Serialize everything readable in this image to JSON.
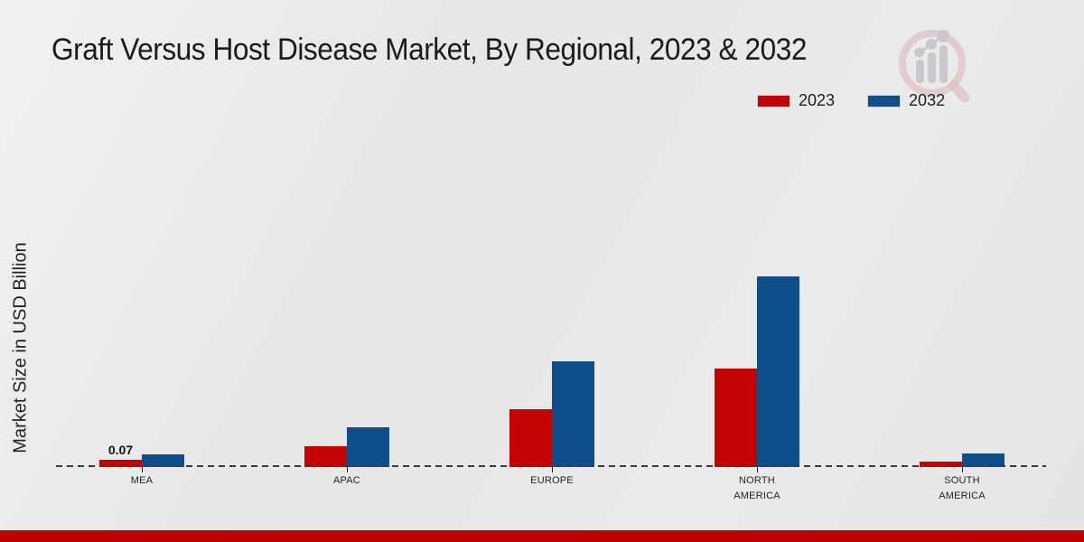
{
  "header": {
    "title": "Graft Versus Host Disease Market, By Regional, 2023 & 2032"
  },
  "legend": {
    "position": "top-right",
    "items": [
      {
        "label": "2023",
        "color": "#c40404"
      },
      {
        "label": "2032",
        "color": "#0d4e8b"
      }
    ]
  },
  "chart_data": {
    "type": "bar",
    "title": "Graft Versus Host Disease Market, By Regional, 2023 & 2032",
    "categories": [
      "MEA",
      "APAC",
      "EUROPE",
      "NORTH AMERICA",
      "SOUTH AMERICA"
    ],
    "series": [
      {
        "name": "2023",
        "color": "#c40404",
        "values": [
          0.07,
          0.2,
          0.56,
          0.96,
          0.05
        ]
      },
      {
        "name": "2032",
        "color": "#0d4e8b",
        "values": [
          0.12,
          0.39,
          1.03,
          1.85,
          0.13
        ]
      }
    ],
    "xlabel": "",
    "ylabel": "Market Size in USD Billion",
    "ylim": [
      0,
      2
    ],
    "grid": false,
    "baseline_style": "dashed",
    "legend_position": "top-right",
    "data_labels": [
      {
        "series": "2023",
        "category": "MEA",
        "text": "0.07"
      }
    ]
  },
  "watermark": {
    "name": "market-research-magnifier-logo"
  },
  "footer": {
    "accent_color": "#bb0101"
  }
}
